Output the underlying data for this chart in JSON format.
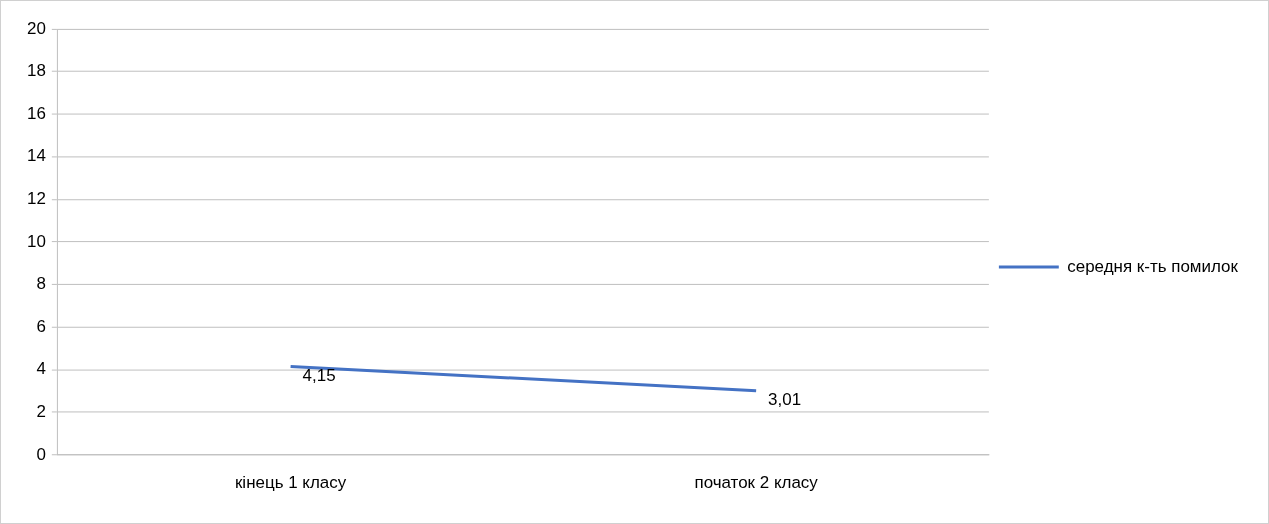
{
  "chart_data": {
    "type": "line",
    "categories": [
      "кінець 1 класу",
      "початок 2 класу"
    ],
    "series": [
      {
        "name": "середня к-ть помилок",
        "color": "#4472c4",
        "values": [
          4.15,
          3.01
        ],
        "value_labels": [
          "4,15",
          "3,01"
        ]
      }
    ],
    "ylim": [
      0,
      20
    ],
    "yticks": [
      0,
      2,
      4,
      6,
      8,
      10,
      12,
      14,
      16,
      18,
      20
    ],
    "grid": "y",
    "legend": "right",
    "marker": "none",
    "line_style": "solid"
  }
}
